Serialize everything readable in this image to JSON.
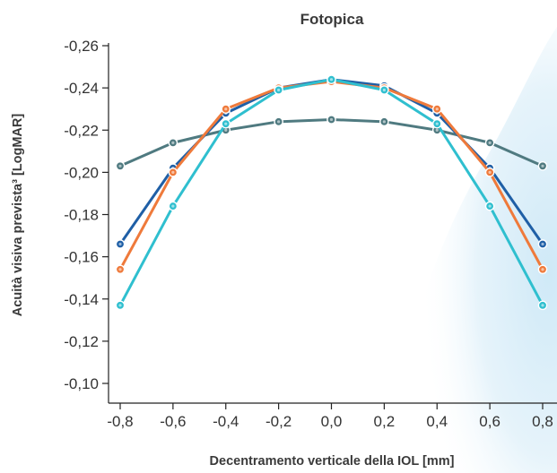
{
  "chart_data": {
    "type": "line",
    "title": "Fotopica",
    "xlabel": "Decentramento verticale della IOL [mm]",
    "ylabel": "Acuità visiva prevista³ [LogMAR]",
    "x": [
      -0.8,
      -0.6,
      -0.4,
      -0.2,
      0.0,
      0.2,
      0.4,
      0.6,
      0.8
    ],
    "xlim": [
      -0.85,
      0.85
    ],
    "ylim": [
      -0.26,
      -0.09
    ],
    "y_inverted": true,
    "grid": false,
    "legend": "none",
    "x_tick_labels": [
      "-0,8",
      "-0,6",
      "-0,4",
      "-0,2",
      "0,0",
      "0,2",
      "0,4",
      "0,6",
      "0,8"
    ],
    "y_ticks": [
      -0.26,
      -0.24,
      -0.22,
      -0.2,
      -0.18,
      -0.16,
      -0.14,
      -0.12,
      -0.1
    ],
    "y_tick_labels": [
      "-0,26",
      "-0,24",
      "-0,22",
      "-0,20",
      "-0,18",
      "-0,16",
      "-0,14",
      "-0,12",
      "-0,10"
    ],
    "series": [
      {
        "color": "#4f7a80",
        "values": [
          -0.203,
          -0.214,
          -0.22,
          -0.224,
          -0.225,
          -0.224,
          -0.22,
          -0.214,
          -0.203
        ]
      },
      {
        "color": "#1f5fa6",
        "values": [
          -0.166,
          -0.202,
          -0.228,
          -0.24,
          -0.244,
          -0.241,
          -0.228,
          -0.202,
          -0.166
        ]
      },
      {
        "color": "#ef7a3b",
        "values": [
          -0.154,
          -0.2,
          -0.23,
          -0.24,
          -0.243,
          -0.24,
          -0.23,
          -0.2,
          -0.154
        ]
      },
      {
        "color": "#2fbfcf",
        "values": [
          -0.137,
          -0.184,
          -0.223,
          -0.239,
          -0.244,
          -0.239,
          -0.223,
          -0.184,
          -0.137
        ]
      }
    ]
  }
}
